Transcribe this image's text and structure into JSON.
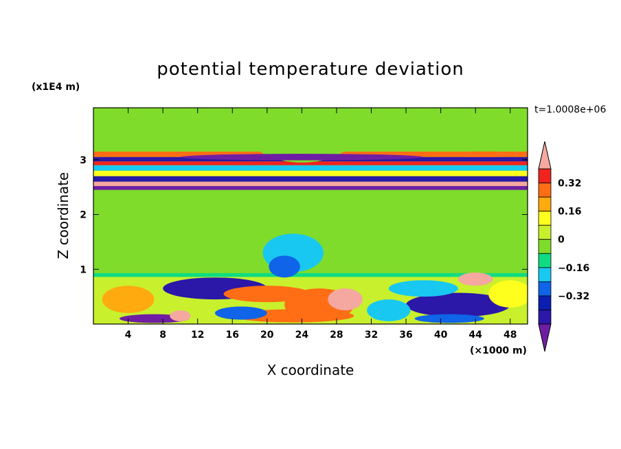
{
  "chart_data": {
    "type": "heatmap",
    "title": "potential temperature deviation",
    "xlabel": "X coordinate",
    "ylabel": "Z coordinate",
    "x_unit": "(×1000 m)",
    "y_unit": "(x1E4 m)",
    "time_label": "t=1.0008e+06",
    "xlim": [
      0,
      50
    ],
    "ylim": [
      0,
      3.95
    ],
    "x_ticks": [
      4,
      8,
      12,
      16,
      20,
      24,
      28,
      32,
      36,
      40,
      44,
      48
    ],
    "x_tick_labels": [
      "4",
      "8",
      "12",
      "16",
      "20",
      "24",
      "28",
      "32",
      "36",
      "40",
      "44",
      "48"
    ],
    "y_ticks": [
      1,
      2,
      3
    ],
    "y_tick_labels": [
      "1",
      "2",
      "3"
    ],
    "colorbar": {
      "levels": [
        -0.48,
        -0.4,
        -0.32,
        -0.24,
        -0.16,
        -0.08,
        0,
        0.08,
        0.16,
        0.24,
        0.32,
        0.4,
        0.48
      ],
      "colors": [
        "#6f1ea3",
        "#2b17a8",
        "#0a1fb0",
        "#0f64e8",
        "#19c8f0",
        "#0fdc82",
        "#7fdc2a",
        "#c8f02d",
        "#ffff1e",
        "#ffaa0f",
        "#ff6e14",
        "#f0231e",
        "#f4a8a0"
      ],
      "tick_values": [
        0.32,
        0.16,
        0,
        -0.16,
        -0.32
      ],
      "tick_labels": [
        "0.32",
        "0.16",
        "0",
        "−0.16",
        "−0.32"
      ],
      "extend": "both"
    },
    "background_value": 0.04,
    "features": [
      {
        "shape": "band",
        "z0": 3.05,
        "z1": 3.15,
        "value": 0.28
      },
      {
        "shape": "band",
        "z0": 2.97,
        "z1": 3.05,
        "value": -0.4
      },
      {
        "shape": "band",
        "z0": 2.9,
        "z1": 2.97,
        "value": 0.4
      },
      {
        "shape": "band",
        "z0": 2.8,
        "z1": 2.9,
        "value": -0.16
      },
      {
        "shape": "band",
        "z0": 2.7,
        "z1": 2.8,
        "value": 0.2
      },
      {
        "shape": "band",
        "z0": 2.6,
        "z1": 2.7,
        "value": -0.38
      },
      {
        "shape": "band",
        "z0": 2.52,
        "z1": 2.6,
        "value": 0.46
      },
      {
        "shape": "band",
        "z0": 2.45,
        "z1": 2.52,
        "value": -0.45
      },
      {
        "shape": "band",
        "z0": 0.86,
        "z1": 0.93,
        "value": -0.1
      },
      {
        "shape": "band",
        "z0": 0.0,
        "z1": 0.86,
        "value": 0.1
      },
      {
        "shape": "blob",
        "x": 24,
        "z": 3.45,
        "rx": 6,
        "rz": 0.5,
        "value": -0.02
      },
      {
        "shape": "blob",
        "x": 30,
        "z": 1.6,
        "rx": 10,
        "rz": 0.6,
        "value": -0.02
      },
      {
        "shape": "blob",
        "x": 23,
        "z": 1.3,
        "rx": 3.5,
        "rz": 0.35,
        "value": -0.12
      },
      {
        "shape": "blob",
        "x": 22,
        "z": 1.05,
        "rx": 1.8,
        "rz": 0.2,
        "value": -0.2
      },
      {
        "shape": "blob",
        "x": 24,
        "z": 3.05,
        "rx": 14,
        "rz": 0.06,
        "value": -0.44
      },
      {
        "shape": "blob",
        "x": 45,
        "z": 3.1,
        "rx": 6,
        "rz": 0.05,
        "value": 0.34
      },
      {
        "shape": "blob",
        "x": 14,
        "z": 0.65,
        "rx": 6,
        "rz": 0.2,
        "value": -0.38
      },
      {
        "shape": "blob",
        "x": 20,
        "z": 0.55,
        "rx": 5,
        "rz": 0.15,
        "value": 0.3
      },
      {
        "shape": "blob",
        "x": 26,
        "z": 0.35,
        "rx": 4,
        "rz": 0.3,
        "value": 0.36
      },
      {
        "shape": "blob",
        "x": 29,
        "z": 0.45,
        "rx": 2,
        "rz": 0.2,
        "value": 0.46
      },
      {
        "shape": "blob",
        "x": 23,
        "z": 0.15,
        "rx": 7,
        "rz": 0.12,
        "value": 0.3
      },
      {
        "shape": "blob",
        "x": 42,
        "z": 0.35,
        "rx": 6,
        "rz": 0.22,
        "value": -0.4
      },
      {
        "shape": "blob",
        "x": 41,
        "z": 0.1,
        "rx": 4,
        "rz": 0.08,
        "value": -0.24
      },
      {
        "shape": "blob",
        "x": 38,
        "z": 0.65,
        "rx": 4,
        "rz": 0.15,
        "value": -0.16
      },
      {
        "shape": "blob",
        "x": 7,
        "z": 0.1,
        "rx": 4,
        "rz": 0.08,
        "value": -0.44
      },
      {
        "shape": "blob",
        "x": 10,
        "z": 0.15,
        "rx": 1.2,
        "rz": 0.1,
        "value": 0.46
      },
      {
        "shape": "blob",
        "x": 4,
        "z": 0.45,
        "rx": 3,
        "rz": 0.25,
        "value": 0.24
      },
      {
        "shape": "blob",
        "x": 17,
        "z": 0.2,
        "rx": 3,
        "rz": 0.12,
        "value": -0.2
      },
      {
        "shape": "blob",
        "x": 44,
        "z": 0.82,
        "rx": 2,
        "rz": 0.12,
        "value": 0.46
      },
      {
        "shape": "blob",
        "x": 48,
        "z": 0.55,
        "rx": 2.5,
        "rz": 0.25,
        "value": 0.2
      },
      {
        "shape": "blob",
        "x": 34,
        "z": 0.25,
        "rx": 2.5,
        "rz": 0.2,
        "value": -0.12
      }
    ]
  }
}
